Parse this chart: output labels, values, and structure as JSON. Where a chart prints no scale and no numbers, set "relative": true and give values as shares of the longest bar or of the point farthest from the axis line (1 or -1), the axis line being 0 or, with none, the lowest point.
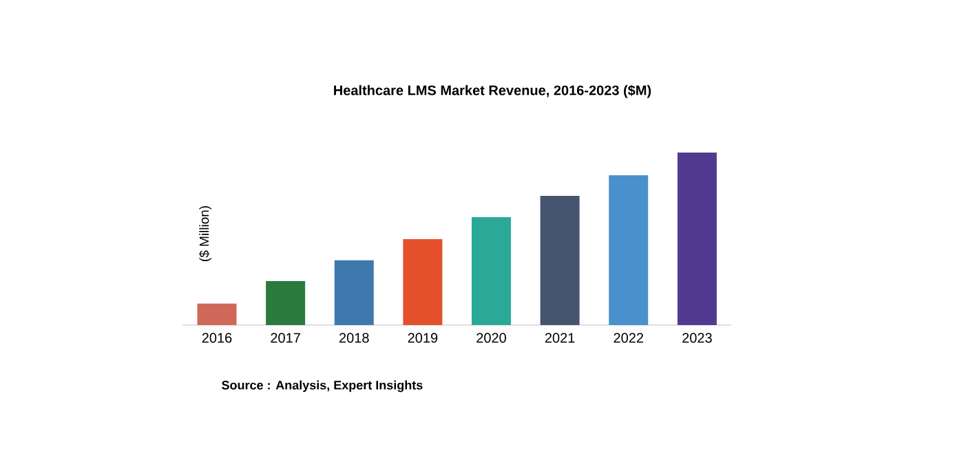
{
  "chart_data": {
    "type": "bar",
    "title": "Healthcare LMS Market Revenue, 2016-2023 ($M)",
    "ylabel": "($ Million)",
    "relative": true,
    "categories": [
      "2016",
      "2017",
      "2018",
      "2019",
      "2020",
      "2021",
      "2022",
      "2023"
    ],
    "values": [
      0.124,
      0.255,
      0.375,
      0.498,
      0.625,
      0.749,
      0.869,
      1
    ],
    "colors": [
      "#d0685a",
      "#2a7a3e",
      "#3e78ad",
      "#e4502a",
      "#2aa898",
      "#45546f",
      "#4a90cc",
      "#523a90"
    ],
    "annotations": [
      "Source : Analysis, Expert Insights"
    ]
  }
}
